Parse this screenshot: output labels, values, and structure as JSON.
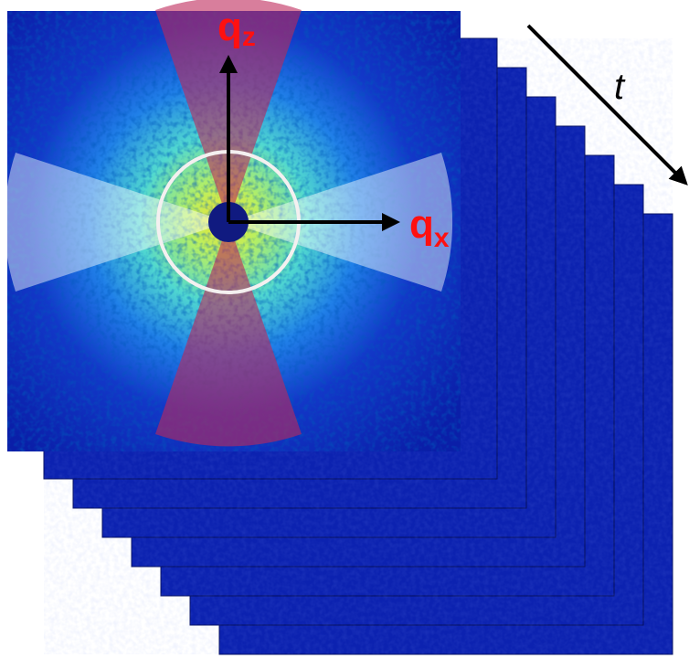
{
  "labels": {
    "qz": {
      "main": "q",
      "sub": "z"
    },
    "qx": {
      "main": "q",
      "sub": "x"
    },
    "time": "t"
  }
}
